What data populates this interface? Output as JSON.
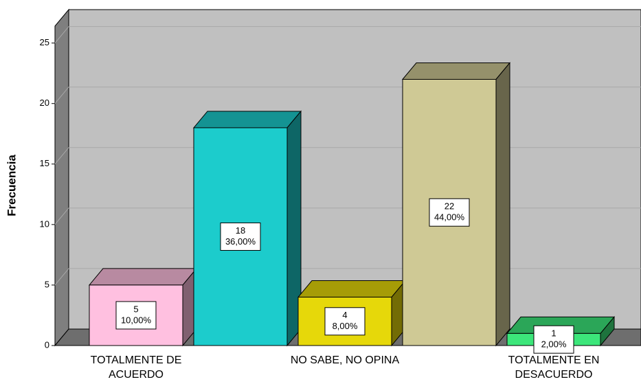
{
  "chart_data": {
    "type": "bar3d",
    "y_label": "Frecuencia",
    "categories": [
      "TOTALMENTE DE ACUERDO",
      null,
      "NO SABE, NO OPINA",
      null,
      "TOTALMENTE EN DESACUERDO"
    ],
    "values": [
      5,
      18,
      4,
      22,
      1
    ],
    "percent_values": [
      10,
      36,
      8,
      44,
      2
    ],
    "percent_labels": [
      "10,00%",
      "36,00%",
      "8,00%",
      "44,00%",
      "2,00%"
    ],
    "colors": [
      "#ffc0e0",
      "#1ccccc",
      "#e6d80a",
      "#cfc995",
      "#3ce67a"
    ],
    "ylim": [
      0,
      26.4
    ],
    "yticks": [
      0,
      5,
      10,
      15,
      20,
      25
    ],
    "grid": true
  }
}
